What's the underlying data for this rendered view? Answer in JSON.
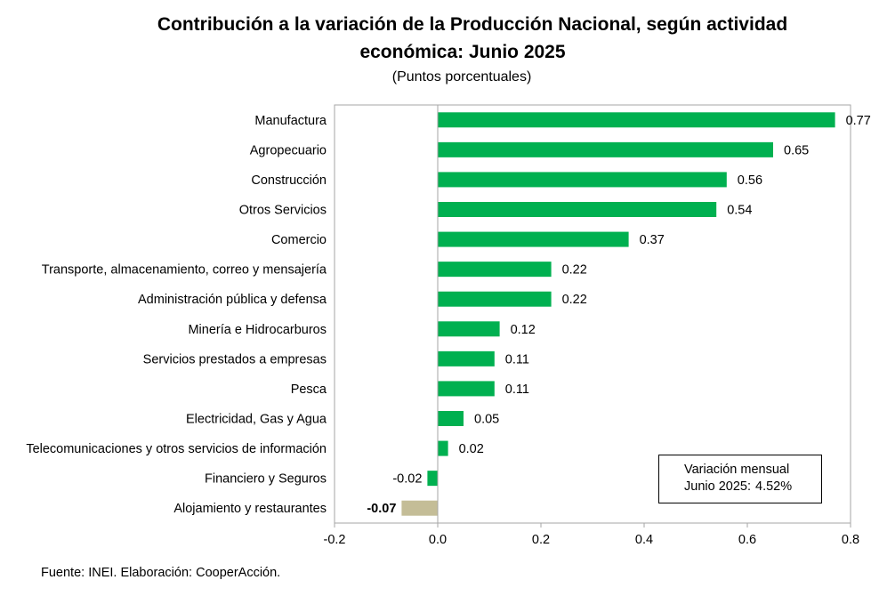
{
  "title_line1": "Contribución a la variación de la Producción Nacional, según actividad",
  "title_line2": "económica: Junio 2025",
  "subtitle": "(Puntos porcentuales)",
  "source": "Fuente: INEI. Elaboración: CooperAcción.",
  "summary": {
    "label_line1": "Variación mensual",
    "label_line2": "Junio 2025:",
    "value": "4.52%"
  },
  "colors": {
    "positive": "#00b050",
    "negative_small": "#00b050",
    "negative": "#c4bd97",
    "axis": "#a6a6a6"
  },
  "chart_data": {
    "type": "bar",
    "orientation": "horizontal",
    "categories": [
      "Manufactura",
      "Agropecuario",
      "Construcción",
      "Otros Servicios",
      "Comercio",
      "Transporte, almacenamiento, correo y mensajería",
      "Administración pública y defensa",
      "Minería e Hidrocarburos",
      "Servicios prestados a empresas",
      "Pesca",
      "Electricidad, Gas y Agua",
      "Telecomunicaciones y otros servicios de información",
      "Financiero y Seguros",
      "Alojamiento y restaurantes"
    ],
    "values": [
      0.77,
      0.65,
      0.56,
      0.54,
      0.37,
      0.22,
      0.22,
      0.12,
      0.11,
      0.11,
      0.05,
      0.02,
      -0.02,
      -0.07
    ],
    "value_labels": [
      "0.77",
      "0.65",
      "0.56",
      "0.54",
      "0.37",
      "0.22",
      "0.22",
      "0.12",
      "0.11",
      "0.11",
      "0.05",
      "0.02",
      "-0.02",
      "-0.07"
    ],
    "bar_colors": [
      "#00b050",
      "#00b050",
      "#00b050",
      "#00b050",
      "#00b050",
      "#00b050",
      "#00b050",
      "#00b050",
      "#00b050",
      "#00b050",
      "#00b050",
      "#00b050",
      "#00b050",
      "#c4bd97"
    ],
    "bold_labels": [
      false,
      false,
      false,
      false,
      false,
      false,
      false,
      false,
      false,
      false,
      false,
      false,
      false,
      true
    ],
    "xlim": [
      -0.2,
      0.8
    ],
    "xticks": [
      "-0.2",
      "0.0",
      "0.2",
      "0.4",
      "0.6",
      "0.8"
    ],
    "xtick_values": [
      -0.2,
      0.0,
      0.2,
      0.4,
      0.6,
      0.8
    ],
    "grid": false
  }
}
